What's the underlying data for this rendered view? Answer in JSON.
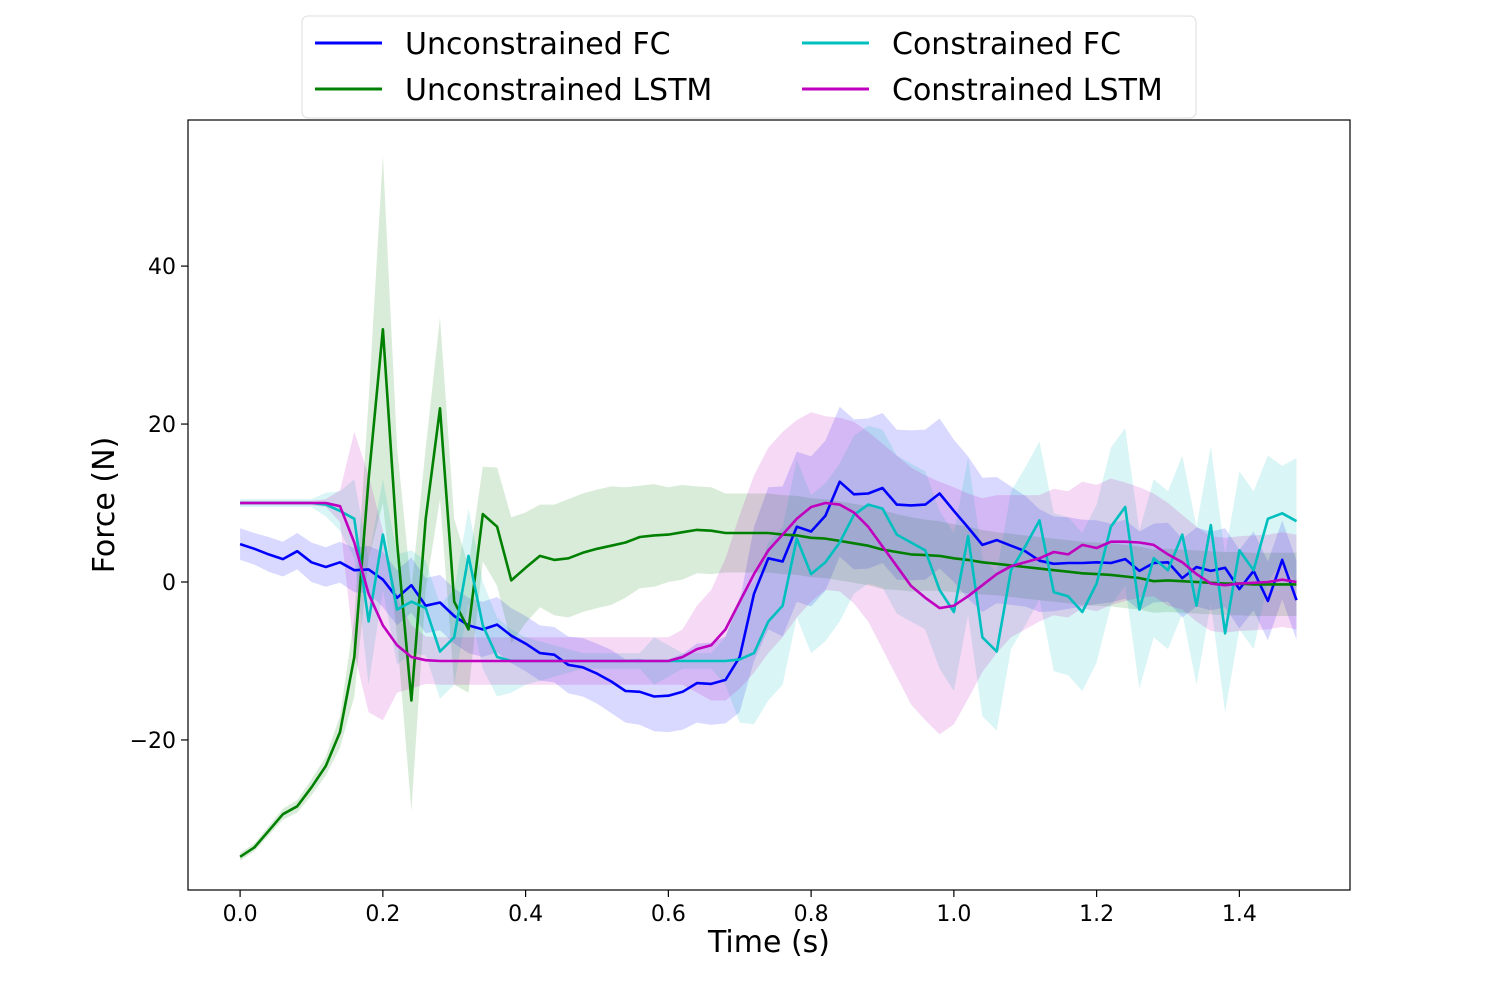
{
  "chart_data": {
    "type": "line",
    "title": "",
    "xlabel": "Time (s)",
    "ylabel": "Force (N)",
    "xlim": [
      -0.073,
      1.555
    ],
    "ylim": [
      -39,
      58.5
    ],
    "xticks": [
      0.0,
      0.2,
      0.4,
      0.6,
      0.8,
      1.0,
      1.2,
      1.4
    ],
    "xtick_labels": [
      "0.0",
      "0.2",
      "0.4",
      "0.6",
      "0.8",
      "1.0",
      "1.2",
      "1.4"
    ],
    "yticks": [
      -20,
      0,
      20,
      40
    ],
    "ytick_labels": [
      "−20",
      "0",
      "20",
      "40"
    ],
    "grid": false,
    "legend_position": "top-center",
    "x": [
      0.0,
      0.02,
      0.04,
      0.06,
      0.08,
      0.1,
      0.12,
      0.14,
      0.16,
      0.18,
      0.2,
      0.22,
      0.24,
      0.26,
      0.28,
      0.3,
      0.32,
      0.34,
      0.36,
      0.38,
      0.4,
      0.42,
      0.44,
      0.46,
      0.48,
      0.5,
      0.52,
      0.54,
      0.56,
      0.58,
      0.6,
      0.62,
      0.64,
      0.66,
      0.68,
      0.7,
      0.72,
      0.74,
      0.76,
      0.78,
      0.8,
      0.82,
      0.84,
      0.86,
      0.88,
      0.9,
      0.92,
      0.94,
      0.96,
      0.98,
      1.0,
      1.02,
      1.04,
      1.06,
      1.08,
      1.1,
      1.12,
      1.14,
      1.16,
      1.18,
      1.2,
      1.22,
      1.24,
      1.26,
      1.28,
      1.3,
      1.32,
      1.34,
      1.36,
      1.38,
      1.4,
      1.42,
      1.44,
      1.46,
      1.48
    ],
    "series": [
      {
        "name": "Unconstrained FC",
        "color": "#0000ff",
        "values": [
          4.8,
          4.2,
          3.5,
          2.9,
          3.9,
          2.5,
          1.9,
          2.5,
          1.5,
          1.6,
          0.3,
          -2.0,
          -0.4,
          -3.0,
          -2.6,
          -4.3,
          -5.5,
          -6.0,
          -5.4,
          -6.8,
          -7.8,
          -9.0,
          -9.2,
          -10.5,
          -10.8,
          -11.6,
          -12.6,
          -13.8,
          -13.9,
          -14.5,
          -14.4,
          -13.9,
          -12.8,
          -12.9,
          -12.4,
          -9.5,
          -1.5,
          3.0,
          2.6,
          7.0,
          6.4,
          8.4,
          12.7,
          11.1,
          11.2,
          11.9,
          9.8,
          9.7,
          9.8,
          11.2,
          9.0,
          6.9,
          4.7,
          5.3,
          4.6,
          3.9,
          2.7,
          2.3,
          2.4,
          2.4,
          2.5,
          2.4,
          2.9,
          1.4,
          2.4,
          2.5,
          0.5,
          1.9,
          1.4,
          1.8,
          -0.9,
          1.4,
          -2.4,
          2.8,
          -2.3
        ],
        "band": [
          2.0,
          2.0,
          2.2,
          2.2,
          2.3,
          2.5,
          2.5,
          2.6,
          2.8,
          3.0,
          3.5,
          3.5,
          3.5,
          3.5,
          3.5,
          3.5,
          3.5,
          3.5,
          3.5,
          3.5,
          3.5,
          3.5,
          3.5,
          3.6,
          3.7,
          3.8,
          4.0,
          4.0,
          4.2,
          4.4,
          4.6,
          4.8,
          5.0,
          5.2,
          5.5,
          7.0,
          8.5,
          9.0,
          9.5,
          9.5,
          9.5,
          9.5,
          9.5,
          9.5,
          9.5,
          9.5,
          9.5,
          9.5,
          9.5,
          9.5,
          9.0,
          9.0,
          8.5,
          8.0,
          7.5,
          7.0,
          6.5,
          6.0,
          5.8,
          5.5,
          5.3,
          5.0,
          5.0,
          5.0,
          5.0,
          5.0,
          5.0,
          5.0,
          5.0,
          5.0,
          5.0,
          5.0,
          5.0,
          5.0,
          5.0
        ]
      },
      {
        "name": "Unconstrained LSTM",
        "color": "#008000",
        "values": [
          -34.8,
          -33.6,
          -31.5,
          -29.4,
          -28.4,
          -26.0,
          -23.3,
          -19.0,
          -9.5,
          13.0,
          32.0,
          5.0,
          -15.0,
          8.0,
          22.0,
          -2.5,
          -6.0,
          8.6,
          7.0,
          0.2,
          1.8,
          3.3,
          2.8,
          3.0,
          3.7,
          4.2,
          4.6,
          5.0,
          5.7,
          5.9,
          6.0,
          6.3,
          6.6,
          6.5,
          6.2,
          6.2,
          6.2,
          6.2,
          6.0,
          5.9,
          5.6,
          5.5,
          5.2,
          4.9,
          4.6,
          4.1,
          3.8,
          3.5,
          3.4,
          3.3,
          3.0,
          2.8,
          2.5,
          2.3,
          2.1,
          1.9,
          1.7,
          1.5,
          1.3,
          1.1,
          1.0,
          0.9,
          0.7,
          0.5,
          0.1,
          0.2,
          0.1,
          0.0,
          -0.1,
          -0.2,
          -0.2,
          -0.3,
          -0.3,
          -0.3,
          -0.3
        ],
        "band": [
          0.5,
          0.5,
          0.6,
          0.7,
          0.8,
          1.0,
          1.2,
          2.0,
          5.0,
          10.0,
          22.0,
          12.0,
          14.0,
          9.0,
          11.5,
          10.5,
          8.0,
          6.0,
          7.5,
          8.0,
          7.0,
          6.5,
          7.0,
          7.5,
          7.5,
          7.5,
          7.5,
          7.0,
          6.5,
          6.5,
          6.0,
          6.0,
          5.5,
          5.5,
          5.0,
          5.0,
          5.0,
          5.0,
          5.0,
          5.0,
          5.0,
          5.0,
          5.0,
          5.0,
          5.0,
          5.0,
          4.8,
          4.7,
          4.5,
          4.4,
          4.3,
          4.2,
          4.1,
          4.0,
          4.0,
          4.0,
          4.0,
          4.0,
          4.0,
          4.0,
          4.0,
          4.0,
          4.0,
          4.0,
          4.0,
          4.0,
          4.0,
          4.0,
          4.0,
          4.0,
          4.0,
          4.0,
          4.0,
          4.0,
          4.0
        ]
      },
      {
        "name": "Constrained FC",
        "color": "#00bfbf",
        "values": [
          10.0,
          10.0,
          10.0,
          10.0,
          10.0,
          10.0,
          9.8,
          9.0,
          8.0,
          -5.0,
          6.0,
          -3.5,
          -2.5,
          -3.3,
          -8.8,
          -7.0,
          3.3,
          -5.5,
          -9.5,
          -10.0,
          -10.0,
          -10.0,
          -10.0,
          -10.0,
          -10.0,
          -10.0,
          -10.0,
          -10.0,
          -10.0,
          -10.0,
          -10.0,
          -10.0,
          -10.0,
          -10.0,
          -10.0,
          -9.8,
          -9.0,
          -5.0,
          -3.0,
          5.5,
          1.0,
          2.5,
          5.0,
          8.5,
          9.8,
          9.3,
          6.0,
          5.0,
          4.0,
          -1.0,
          -3.8,
          5.8,
          -7.0,
          -8.8,
          1.5,
          4.5,
          7.8,
          -1.3,
          -1.8,
          -3.8,
          -0.2,
          7.0,
          9.5,
          -3.5,
          3.0,
          1.5,
          6.0,
          -3.0,
          7.2,
          -6.5,
          4.0,
          1.5,
          8.0,
          8.7,
          7.7
        ],
        "band": [
          0.5,
          0.5,
          0.5,
          0.5,
          0.5,
          0.5,
          1.5,
          2.5,
          5.0,
          8.0,
          7.0,
          7.0,
          6.5,
          6.0,
          6.0,
          6.0,
          6.0,
          5.5,
          5.0,
          4.0,
          3.0,
          2.5,
          2.0,
          1.5,
          1.0,
          1.0,
          1.0,
          1.0,
          1.0,
          3.0,
          2.0,
          1.0,
          1.0,
          1.0,
          3.0,
          8.0,
          9.0,
          10.0,
          10.0,
          10.0,
          10.0,
          10.0,
          10.0,
          10.0,
          10.0,
          10.0,
          10.0,
          10.0,
          10.0,
          10.0,
          10.0,
          10.0,
          10.0,
          10.0,
          10.0,
          10.0,
          10.0,
          10.0,
          10.0,
          10.0,
          10.0,
          10.0,
          10.0,
          10.0,
          10.0,
          10.0,
          10.0,
          10.0,
          10.0,
          10.0,
          10.0,
          10.0,
          8.0,
          6.0,
          8.0
        ]
      },
      {
        "name": "Constrained LSTM",
        "color": "#bf00bf",
        "values": [
          10.0,
          10.0,
          10.0,
          10.0,
          10.0,
          10.0,
          10.0,
          9.6,
          5.0,
          -1.5,
          -5.5,
          -8.0,
          -9.5,
          -9.9,
          -10.0,
          -10.0,
          -10.0,
          -10.0,
          -10.0,
          -10.0,
          -10.0,
          -10.0,
          -10.0,
          -10.0,
          -10.0,
          -10.0,
          -10.0,
          -10.0,
          -10.0,
          -10.0,
          -10.0,
          -9.5,
          -8.5,
          -8.0,
          -6.0,
          -2.5,
          1.0,
          4.0,
          6.0,
          8.0,
          9.5,
          10.0,
          9.8,
          8.8,
          7.0,
          4.5,
          2.0,
          -0.5,
          -2.0,
          -3.3,
          -3.0,
          -1.8,
          -0.4,
          1.0,
          2.0,
          2.5,
          3.0,
          3.8,
          3.5,
          4.7,
          4.3,
          5.1,
          5.1,
          5.0,
          4.7,
          3.5,
          2.5,
          1.0,
          -0.2,
          -0.4,
          -0.2,
          -0.1,
          0.0,
          0.3,
          0.0
        ],
        "band": [
          0.3,
          0.3,
          0.3,
          0.3,
          0.3,
          0.3,
          0.5,
          2.0,
          14.0,
          15.0,
          12.0,
          6.0,
          4.0,
          3.0,
          3.0,
          3.0,
          3.0,
          3.0,
          3.0,
          3.0,
          3.0,
          3.0,
          3.0,
          3.0,
          3.0,
          3.0,
          3.0,
          3.0,
          3.0,
          3.0,
          3.0,
          3.5,
          5.5,
          7.0,
          9.0,
          11.0,
          12.5,
          13.0,
          13.0,
          12.5,
          12.0,
          11.0,
          11.0,
          11.5,
          12.0,
          13.0,
          14.0,
          15.0,
          15.5,
          16.0,
          15.0,
          13.0,
          11.0,
          10.0,
          9.0,
          8.5,
          8.0,
          8.0,
          8.0,
          8.0,
          8.0,
          8.0,
          7.5,
          7.0,
          6.5,
          6.5,
          6.0,
          6.0,
          6.0,
          6.0,
          6.0,
          6.0,
          6.0,
          6.0,
          6.0
        ]
      }
    ]
  }
}
